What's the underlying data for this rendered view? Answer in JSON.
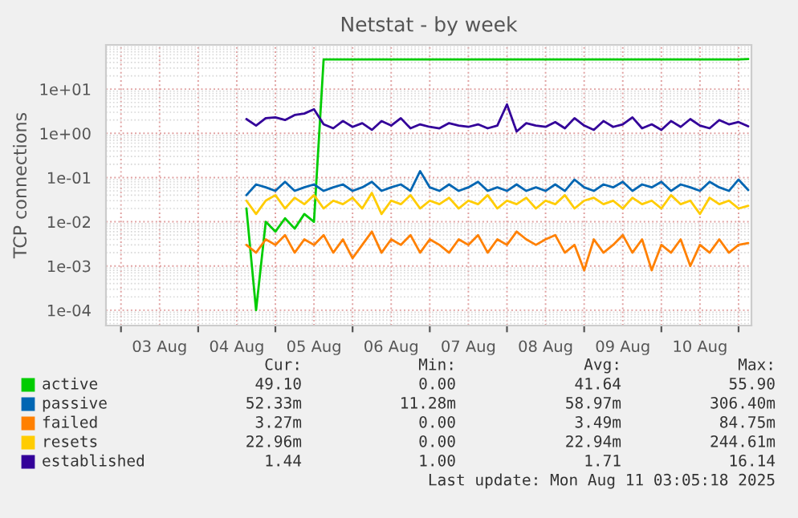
{
  "chart_data": {
    "type": "line",
    "title": "Netstat - by week",
    "ylabel": "TCP connections",
    "x": [
      "2025-08-04T15:00",
      "2025-08-04T18:00",
      "2025-08-04T21:00",
      "2025-08-05T00:00",
      "2025-08-05T03:00",
      "2025-08-05T06:00",
      "2025-08-05T09:00",
      "2025-08-05T12:00",
      "2025-08-05T15:00",
      "2025-08-05T18:00",
      "2025-08-05T21:00",
      "2025-08-06T00:00",
      "2025-08-06T03:00",
      "2025-08-06T06:00",
      "2025-08-06T09:00",
      "2025-08-06T12:00",
      "2025-08-06T15:00",
      "2025-08-06T18:00",
      "2025-08-06T21:00",
      "2025-08-07T00:00",
      "2025-08-07T03:00",
      "2025-08-07T06:00",
      "2025-08-07T09:00",
      "2025-08-07T12:00",
      "2025-08-07T15:00",
      "2025-08-07T18:00",
      "2025-08-07T21:00",
      "2025-08-08T00:00",
      "2025-08-08T03:00",
      "2025-08-08T06:00",
      "2025-08-08T09:00",
      "2025-08-08T12:00",
      "2025-08-08T15:00",
      "2025-08-08T18:00",
      "2025-08-08T21:00",
      "2025-08-09T00:00",
      "2025-08-09T03:00",
      "2025-08-09T06:00",
      "2025-08-09T09:00",
      "2025-08-09T12:00",
      "2025-08-09T15:00",
      "2025-08-09T18:00",
      "2025-08-09T21:00",
      "2025-08-10T00:00",
      "2025-08-10T03:00",
      "2025-08-10T06:00",
      "2025-08-10T09:00",
      "2025-08-10T12:00",
      "2025-08-10T15:00",
      "2025-08-10T18:00",
      "2025-08-10T21:00",
      "2025-08-11T00:00",
      "2025-08-11T03:00"
    ],
    "series": [
      {
        "name": "active",
        "color": "#00cc00",
        "values": [
          0.02,
          0.0001,
          0.01,
          0.006,
          0.012,
          0.007,
          0.015,
          0.01,
          47,
          47,
          47,
          47,
          47,
          47,
          47,
          47,
          47,
          47,
          47,
          47,
          47,
          47,
          47,
          47,
          47,
          47,
          47,
          47,
          47,
          47,
          47,
          47,
          47,
          47,
          47,
          47,
          47,
          47,
          47,
          47,
          47,
          47,
          47,
          47,
          47,
          47,
          47,
          47,
          47,
          47,
          47,
          47,
          48
        ]
      },
      {
        "name": "passive",
        "color": "#0066b3",
        "values": [
          0.04,
          0.07,
          0.06,
          0.05,
          0.08,
          0.05,
          0.06,
          0.07,
          0.05,
          0.06,
          0.07,
          0.05,
          0.06,
          0.08,
          0.05,
          0.06,
          0.07,
          0.05,
          0.14,
          0.06,
          0.05,
          0.07,
          0.05,
          0.06,
          0.08,
          0.05,
          0.06,
          0.05,
          0.07,
          0.05,
          0.06,
          0.05,
          0.07,
          0.05,
          0.09,
          0.06,
          0.05,
          0.07,
          0.06,
          0.08,
          0.05,
          0.07,
          0.06,
          0.08,
          0.05,
          0.07,
          0.06,
          0.05,
          0.08,
          0.06,
          0.05,
          0.09,
          0.0523
        ]
      },
      {
        "name": "failed",
        "color": "#ff8000",
        "values": [
          0.003,
          0.002,
          0.004,
          0.003,
          0.005,
          0.002,
          0.004,
          0.003,
          0.005,
          0.002,
          0.004,
          0.0015,
          0.003,
          0.006,
          0.002,
          0.004,
          0.003,
          0.005,
          0.002,
          0.004,
          0.003,
          0.002,
          0.004,
          0.003,
          0.005,
          0.002,
          0.004,
          0.003,
          0.006,
          0.004,
          0.003,
          0.004,
          0.005,
          0.002,
          0.003,
          0.0008,
          0.004,
          0.002,
          0.003,
          0.005,
          0.002,
          0.004,
          0.0008,
          0.003,
          0.002,
          0.004,
          0.001,
          0.003,
          0.002,
          0.004,
          0.002,
          0.003,
          0.0033
        ]
      },
      {
        "name": "resets",
        "color": "#ffcc00",
        "values": [
          0.03,
          0.015,
          0.03,
          0.04,
          0.02,
          0.035,
          0.025,
          0.04,
          0.02,
          0.03,
          0.025,
          0.035,
          0.02,
          0.045,
          0.015,
          0.03,
          0.025,
          0.04,
          0.02,
          0.03,
          0.025,
          0.035,
          0.02,
          0.03,
          0.025,
          0.04,
          0.02,
          0.03,
          0.025,
          0.035,
          0.02,
          0.03,
          0.025,
          0.04,
          0.02,
          0.03,
          0.035,
          0.025,
          0.03,
          0.02,
          0.035,
          0.025,
          0.03,
          0.02,
          0.04,
          0.025,
          0.03,
          0.015,
          0.035,
          0.025,
          0.03,
          0.02,
          0.023
        ]
      },
      {
        "name": "established",
        "color": "#330099",
        "values": [
          2.1,
          1.5,
          2.2,
          2.3,
          2.0,
          2.6,
          2.8,
          3.5,
          1.6,
          1.3,
          1.9,
          1.4,
          1.7,
          1.2,
          1.9,
          1.5,
          2.2,
          1.3,
          1.6,
          1.4,
          1.3,
          1.7,
          1.5,
          1.4,
          1.6,
          1.3,
          1.5,
          4.5,
          1.1,
          1.7,
          1.5,
          1.4,
          1.8,
          1.3,
          2.2,
          1.5,
          1.2,
          1.9,
          1.4,
          1.6,
          2.3,
          1.3,
          1.6,
          1.2,
          1.9,
          1.4,
          2.1,
          1.5,
          1.3,
          2.0,
          1.6,
          1.8,
          1.44
        ]
      }
    ],
    "log": "y",
    "ylim": [
      4.5e-05,
      100
    ],
    "yticks": [
      {
        "value": 0.0001,
        "label": "1e-04"
      },
      {
        "value": 0.001,
        "label": "1e-03"
      },
      {
        "value": 0.01,
        "label": "1e-02"
      },
      {
        "value": 0.1,
        "label": "1e-01"
      },
      {
        "value": 1,
        "label": "1e+00"
      },
      {
        "value": 10,
        "label": "1e+01"
      }
    ],
    "xlim": [
      "2025-08-02T19:20",
      "2025-08-11T04:00"
    ],
    "xticks": [
      {
        "value": "2025-08-03T00:00",
        "label": null
      },
      {
        "value": "2025-08-03T12:00",
        "label": "03 Aug"
      },
      {
        "value": "2025-08-04T00:00",
        "label": null
      },
      {
        "value": "2025-08-04T12:00",
        "label": "04 Aug"
      },
      {
        "value": "2025-08-05T00:00",
        "label": null
      },
      {
        "value": "2025-08-05T12:00",
        "label": "05 Aug"
      },
      {
        "value": "2025-08-06T00:00",
        "label": null
      },
      {
        "value": "2025-08-06T12:00",
        "label": "06 Aug"
      },
      {
        "value": "2025-08-07T00:00",
        "label": null
      },
      {
        "value": "2025-08-07T12:00",
        "label": "07 Aug"
      },
      {
        "value": "2025-08-08T00:00",
        "label": null
      },
      {
        "value": "2025-08-08T12:00",
        "label": "08 Aug"
      },
      {
        "value": "2025-08-09T00:00",
        "label": null
      },
      {
        "value": "2025-08-09T12:00",
        "label": "09 Aug"
      },
      {
        "value": "2025-08-10T00:00",
        "label": null
      },
      {
        "value": "2025-08-10T12:00",
        "label": "10 Aug"
      },
      {
        "value": "2025-08-11T00:00",
        "label": null
      }
    ],
    "grid": true,
    "legend": "bottom left",
    "annotations": [
      "Cur:",
      "Min:",
      "Avg:",
      "Max:",
      "49.10",
      "0.00",
      "41.64",
      "55.90",
      "52.33m",
      "11.28m",
      "58.97m",
      "306.40m",
      "3.27m",
      "0.00",
      "3.49m",
      "84.75m",
      "22.96m",
      "0.00",
      "22.94m",
      "244.61m",
      "1.44",
      "1.00",
      "1.71",
      "16.14",
      "Last update: Mon Aug 11 03:05:18 2025"
    ]
  }
}
